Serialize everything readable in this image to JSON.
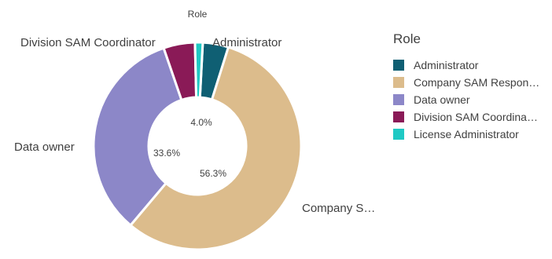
{
  "chart_data": {
    "type": "pie",
    "title": "Role",
    "categories": [
      "Administrator",
      "Company SAM Responsible",
      "Data owner",
      "Division SAM Coordinator",
      "License Administrator"
    ],
    "values": [
      4.0,
      56.3,
      33.6,
      4.9,
      1.2
    ],
    "percent_labels": [
      "4.0%",
      "56.3%",
      "33.6%",
      "",
      ""
    ],
    "outer_labels": [
      "Administrator",
      "Company S…",
      "Data owner",
      "Division SAM Coordinator",
      ""
    ],
    "colors": [
      "#0f5f73",
      "#dcbc8c",
      "#8c87c8",
      "#8a1a57",
      "#1fc9c4"
    ],
    "legend": {
      "title": "Role",
      "placement": "right",
      "labels": [
        "Administrator",
        "Company SAM Respon…",
        "Data owner",
        "Division SAM Coordina…",
        "License Administrator"
      ]
    }
  }
}
